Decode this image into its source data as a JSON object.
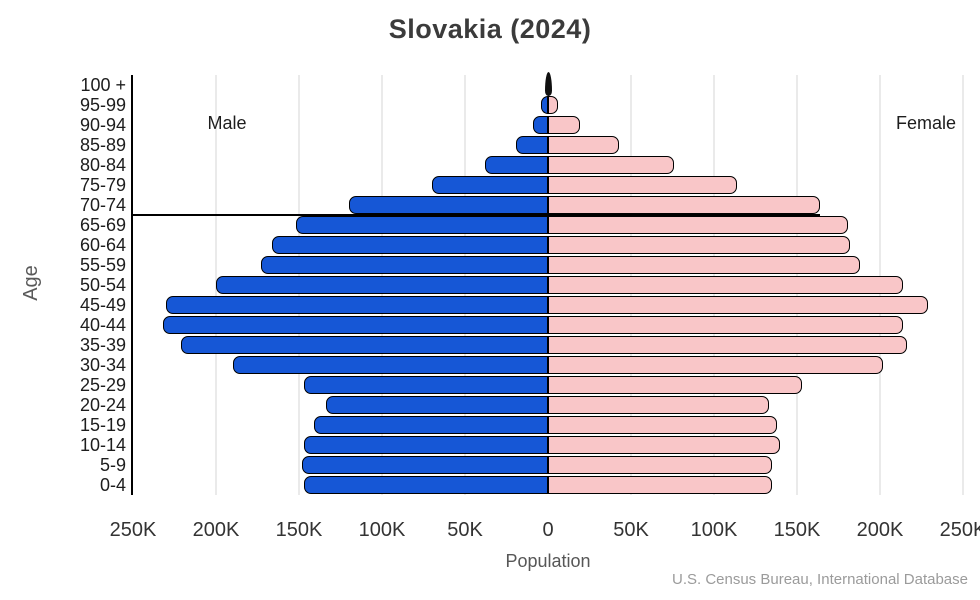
{
  "title": "Slovakia (2024)",
  "labels": {
    "male": "Male",
    "female": "Female",
    "age_axis": "Age",
    "population_axis": "Population",
    "source": "U.S. Census Bureau, International Database"
  },
  "colors": {
    "male_bar": "#1657d6",
    "female_bar": "#f9c6c8",
    "bar_border": "#000000",
    "gridline": "#eaeaea",
    "axis_line": "#000000",
    "title_text": "#3b3b3b",
    "tick_text": "#333333",
    "muted_text": "#595959",
    "source_text": "#9b9b9b",
    "needle": "#101010"
  },
  "x_axis": {
    "tick_labels": [
      "250K",
      "200K",
      "150K",
      "100K",
      "50K",
      "0",
      "50K",
      "100K",
      "150K",
      "200K",
      "250K"
    ],
    "tick_step_thousands": 50,
    "max_thousands": 250
  },
  "chart_data": {
    "type": "bar",
    "subtype": "population-pyramid",
    "title": "Slovakia (2024)",
    "xlabel": "Population",
    "ylabel": "Age",
    "xlim_thousands": [
      -250,
      250
    ],
    "grid": true,
    "legend": [
      "Male",
      "Female"
    ],
    "categories": [
      "100 +",
      "95-99",
      "90-94",
      "85-89",
      "80-84",
      "75-79",
      "70-74",
      "65-69",
      "60-64",
      "55-59",
      "50-54",
      "45-49",
      "40-44",
      "35-39",
      "30-34",
      "25-29",
      "20-24",
      "15-19",
      "10-14",
      "5-9",
      "0-4"
    ],
    "series": [
      {
        "name": "Male",
        "side": "left",
        "values_thousands": [
          0.4,
          4,
          9,
          19,
          38,
          70,
          120,
          152,
          166,
          173,
          200,
          230,
          232,
          221,
          190,
          147,
          134,
          141,
          147,
          148,
          147
        ]
      },
      {
        "name": "Female",
        "side": "right",
        "values_thousands": [
          1,
          6,
          19,
          43,
          76,
          114,
          164,
          181,
          182,
          188,
          214,
          229,
          214,
          216,
          202,
          153,
          133,
          138,
          140,
          135,
          135
        ]
      }
    ],
    "annotations": [
      {
        "type": "hline",
        "below_category": "70-74",
        "extent": "from left axis to end of female 70-74 bar"
      },
      {
        "type": "needle-marker",
        "at_category": "100 +",
        "description": "tiny black marker at center for near-zero 100+ cohort"
      }
    ]
  }
}
